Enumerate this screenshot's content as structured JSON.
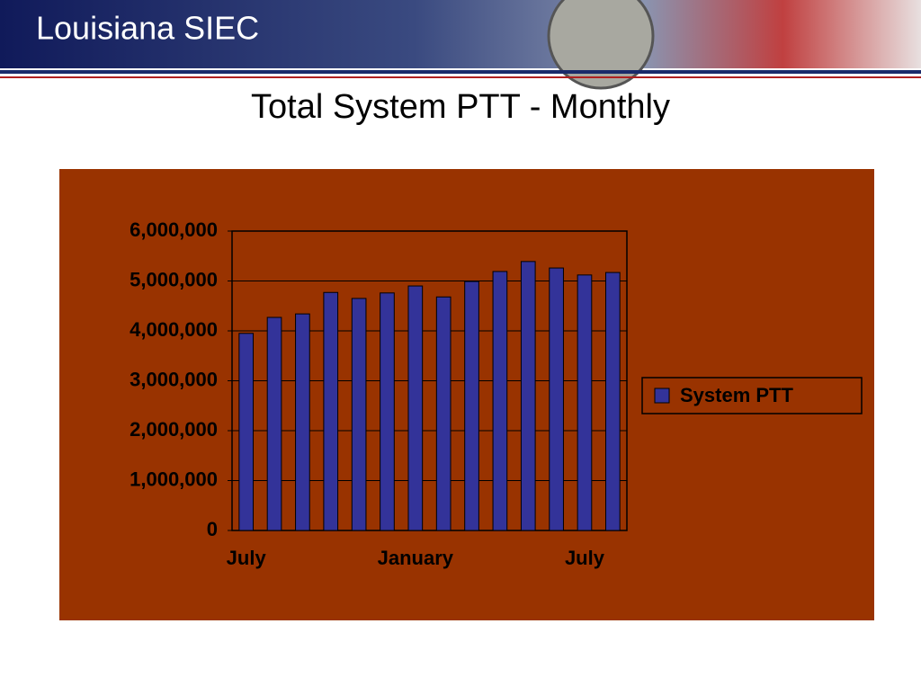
{
  "header": {
    "title": "Louisiana SIEC"
  },
  "chart_data": {
    "type": "bar",
    "title": "Total System PTT - Monthly",
    "categories": [
      "July",
      null,
      null,
      null,
      null,
      null,
      "January",
      null,
      null,
      null,
      null,
      null,
      "July",
      null
    ],
    "series": [
      {
        "name": "System PTT",
        "color": "#333399",
        "values": [
          3950000,
          4270000,
          4340000,
          4770000,
          4650000,
          4760000,
          4900000,
          4680000,
          4990000,
          5190000,
          5390000,
          5260000,
          5120000,
          5170000
        ]
      }
    ],
    "ylim": [
      0,
      6000000
    ],
    "yticks": [
      0,
      {
        "value": 1000000,
        "label": "1,000,000"
      },
      {
        "value": 2000000,
        "label": "2,000,000"
      },
      {
        "value": 3000000,
        "label": "3,000,000"
      },
      {
        "value": 4000000,
        "label": "4,000,000"
      },
      {
        "value": 5000000,
        "label": "5,000,000"
      },
      {
        "value": 6000000,
        "label": "6,000,000"
      }
    ],
    "grid": true,
    "legend": "right"
  }
}
